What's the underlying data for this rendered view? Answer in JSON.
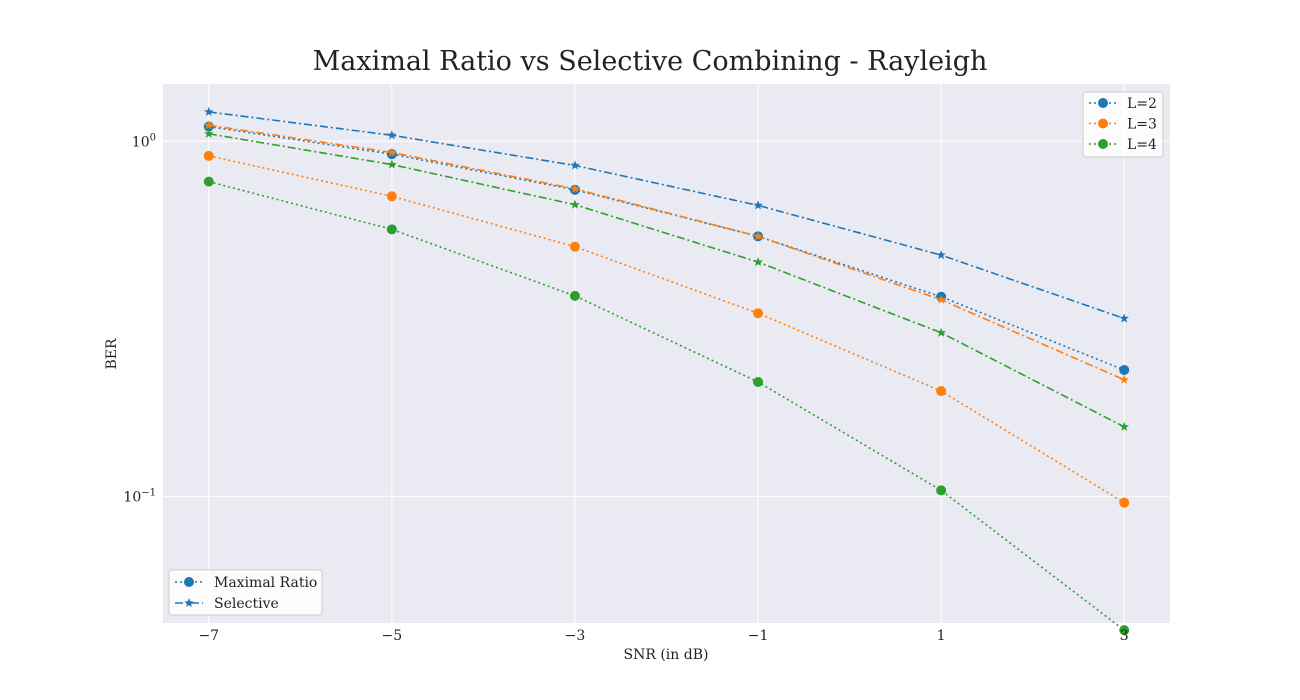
{
  "chart_data": {
    "type": "line",
    "title": "Maximal Ratio vs Selective Combining - Rayleigh",
    "xlabel": "SNR (in dB)",
    "ylabel": "BER",
    "x": [
      -7,
      -5,
      -3,
      -1,
      1,
      3
    ],
    "x_ticks": [
      -7,
      -5,
      -3,
      -1,
      1,
      3
    ],
    "x_tick_labels": [
      "−7",
      "−5",
      "−3",
      "−1",
      "1",
      "3"
    ],
    "xlim": [
      -7.5,
      3.5
    ],
    "yscale": "log",
    "ylim": [
      0.044,
      1.45
    ],
    "y_ticks": [
      {
        "value": 1,
        "base": "10",
        "exp": "0"
      },
      {
        "value": 0.1,
        "base": "10",
        "exp": "−1"
      }
    ],
    "grid": true,
    "colors": {
      "L=2": "#1f77b4",
      "L=3": "#ff7f0e",
      "L=4": "#2ca02c"
    },
    "series": [
      {
        "name": "L=2",
        "method": "Maximal Ratio",
        "values": [
          1.1,
          0.92,
          0.73,
          0.54,
          0.365,
          0.227
        ]
      },
      {
        "name": "L=2",
        "method": "Selective",
        "values": [
          1.21,
          1.04,
          0.855,
          0.66,
          0.478,
          0.317
        ]
      },
      {
        "name": "L=3",
        "method": "Maximal Ratio",
        "values": [
          0.91,
          0.7,
          0.505,
          0.328,
          0.198,
          0.096
        ]
      },
      {
        "name": "L=3",
        "method": "Selective",
        "values": [
          1.11,
          0.93,
          0.735,
          0.54,
          0.358,
          0.213
        ]
      },
      {
        "name": "L=4",
        "method": "Maximal Ratio",
        "values": [
          0.77,
          0.565,
          0.367,
          0.21,
          0.104,
          0.042
        ]
      },
      {
        "name": "L=4",
        "method": "Selective",
        "values": [
          1.05,
          0.86,
          0.663,
          0.457,
          0.289,
          0.157
        ]
      }
    ],
    "legend_series": {
      "position": "upper right",
      "entries": [
        {
          "label": "L=2",
          "color": "#1f77b4"
        },
        {
          "label": "L=3",
          "color": "#ff7f0e"
        },
        {
          "label": "L=4",
          "color": "#2ca02c"
        }
      ]
    },
    "legend_method": {
      "position": "lower left",
      "color": "#1f77b4",
      "entries": [
        {
          "label": "Maximal Ratio",
          "linestyle": "dotted",
          "marker": "circle"
        },
        {
          "label": "Selective",
          "linestyle": "dashdot",
          "marker": "star"
        }
      ]
    }
  }
}
